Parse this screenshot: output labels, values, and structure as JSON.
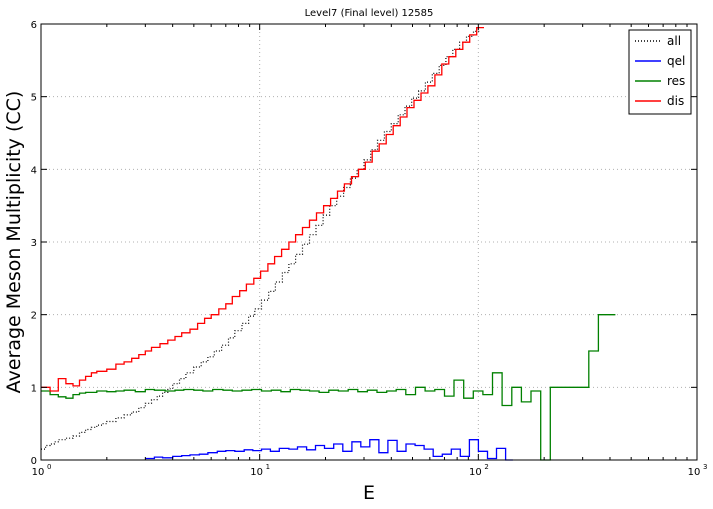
{
  "chart_data": {
    "type": "line",
    "drawstyle": "steps",
    "title": "Level7 (Final level) 12585",
    "xlabel": "E",
    "ylabel": "Average Meson Multiplicity (CC)",
    "xscale": "log",
    "xlim": [
      1,
      1000
    ],
    "ylim": [
      0,
      6
    ],
    "x_ticks": [
      1,
      10,
      100,
      1000
    ],
    "x_tick_labels": [
      "10",
      "10",
      "10",
      "10"
    ],
    "x_tick_exponents": [
      "0",
      "1",
      "2",
      "3"
    ],
    "y_ticks": [
      0,
      1,
      2,
      3,
      4,
      5,
      6
    ],
    "y_tick_labels": [
      "0",
      "1",
      "2",
      "3",
      "4",
      "5",
      "6"
    ],
    "grid": true,
    "legend": "top-right",
    "series": [
      {
        "name": "all",
        "color": "#000000",
        "style": "dotted",
        "x": [
          1.0,
          1.05,
          1.1,
          1.15,
          1.2,
          1.3,
          1.4,
          1.5,
          1.6,
          1.7,
          1.8,
          1.9,
          2.0,
          2.2,
          2.4,
          2.6,
          2.8,
          3.0,
          3.2,
          3.4,
          3.6,
          3.8,
          4.0,
          4.3,
          4.6,
          5.0,
          5.4,
          5.8,
          6.2,
          6.7,
          7.2,
          7.7,
          8.3,
          8.9,
          9.5,
          10.2,
          11.0,
          11.8,
          12.7,
          13.6,
          14.6,
          15.7,
          16.9,
          18.1,
          19.5,
          20.9,
          22.5,
          24.2,
          26.0,
          27.9,
          30.0,
          32.2,
          34.6,
          37.2,
          40.0,
          43.0,
          46.2,
          49.6,
          53.3,
          57.3,
          61.6,
          66.2,
          71.1,
          76.4,
          82.1,
          88.3,
          95.0
        ],
        "values": [
          0.15,
          0.2,
          0.22,
          0.25,
          0.28,
          0.3,
          0.33,
          0.38,
          0.42,
          0.45,
          0.48,
          0.5,
          0.53,
          0.58,
          0.62,
          0.66,
          0.72,
          0.78,
          0.83,
          0.88,
          0.93,
          0.98,
          1.05,
          1.12,
          1.2,
          1.28,
          1.35,
          1.42,
          1.5,
          1.58,
          1.68,
          1.78,
          1.88,
          1.98,
          2.08,
          2.2,
          2.32,
          2.45,
          2.58,
          2.7,
          2.83,
          2.97,
          3.1,
          3.23,
          3.37,
          3.5,
          3.63,
          3.75,
          3.88,
          4.0,
          4.13,
          4.27,
          4.4,
          4.52,
          4.63,
          4.75,
          4.87,
          4.98,
          5.08,
          5.2,
          5.32,
          5.43,
          5.55,
          5.65,
          5.75,
          5.83,
          5.9
        ]
      },
      {
        "name": "qel",
        "color": "#0000ff",
        "style": "solid",
        "x": [
          3.0,
          3.3,
          3.6,
          4.0,
          4.4,
          4.8,
          5.3,
          5.8,
          6.4,
          7.0,
          7.7,
          8.5,
          9.3,
          10.2,
          11.2,
          12.3,
          13.6,
          14.9,
          16.4,
          18.0,
          19.8,
          21.8,
          24.0,
          26.4,
          29.0,
          31.9,
          35.1,
          38.6,
          42.5,
          46.7,
          51.4,
          56.5,
          62.2,
          68.4,
          75.2,
          82.7,
          91.0,
          100.1,
          110.1,
          121.1,
          133.2
        ],
        "values": [
          0.02,
          0.04,
          0.03,
          0.05,
          0.06,
          0.07,
          0.08,
          0.1,
          0.12,
          0.13,
          0.12,
          0.14,
          0.13,
          0.15,
          0.12,
          0.16,
          0.15,
          0.18,
          0.14,
          0.2,
          0.16,
          0.22,
          0.12,
          0.25,
          0.18,
          0.28,
          0.1,
          0.27,
          0.12,
          0.22,
          0.2,
          0.15,
          0.05,
          0.08,
          0.15,
          0.05,
          0.28,
          0.12,
          0.02,
          0.16,
          0.0
        ]
      },
      {
        "name": "res",
        "color": "#008000",
        "style": "solid",
        "x": [
          1.0,
          1.1,
          1.2,
          1.3,
          1.4,
          1.5,
          1.6,
          1.8,
          2.0,
          2.2,
          2.4,
          2.7,
          3.0,
          3.3,
          3.7,
          4.1,
          4.5,
          5.0,
          5.5,
          6.1,
          6.8,
          7.5,
          8.3,
          9.2,
          10.2,
          11.3,
          12.5,
          13.8,
          15.3,
          16.9,
          18.7,
          20.7,
          22.9,
          25.4,
          28.1,
          31.1,
          34.4,
          38.1,
          42.1,
          46.6,
          51.6,
          57.1,
          63.2,
          70.0,
          77.4,
          85.7,
          94.8,
          104.9,
          116.1,
          128.5,
          142.2,
          157.4,
          174.2,
          192.8,
          213.3,
          236.1,
          261.3,
          289.2,
          320.0,
          354.2,
          392.0
        ],
        "values": [
          0.95,
          0.9,
          0.87,
          0.85,
          0.9,
          0.92,
          0.93,
          0.95,
          0.94,
          0.95,
          0.96,
          0.94,
          0.97,
          0.96,
          0.95,
          0.96,
          0.97,
          0.96,
          0.95,
          0.97,
          0.96,
          0.95,
          0.96,
          0.97,
          0.95,
          0.96,
          0.94,
          0.97,
          0.96,
          0.95,
          0.93,
          0.96,
          0.95,
          0.97,
          0.94,
          0.96,
          0.93,
          0.95,
          0.97,
          0.9,
          1.0,
          0.95,
          0.97,
          0.88,
          1.1,
          0.85,
          0.95,
          0.9,
          1.2,
          0.75,
          1.0,
          0.8,
          0.95,
          0.0,
          1.0,
          1.0,
          1.0,
          1.0,
          1.5,
          2.0,
          2.0
        ]
      },
      {
        "name": "dis",
        "color": "#ff0000",
        "style": "solid",
        "x": [
          1.0,
          1.1,
          1.2,
          1.3,
          1.4,
          1.5,
          1.6,
          1.7,
          1.8,
          2.0,
          2.2,
          2.4,
          2.6,
          2.8,
          3.0,
          3.2,
          3.5,
          3.8,
          4.1,
          4.4,
          4.8,
          5.2,
          5.6,
          6.0,
          6.5,
          7.0,
          7.5,
          8.1,
          8.7,
          9.4,
          10.1,
          10.9,
          11.7,
          12.6,
          13.6,
          14.6,
          15.7,
          16.9,
          18.2,
          19.6,
          21.1,
          22.7,
          24.4,
          26.3,
          28.3,
          30.4,
          32.7,
          35.2,
          37.9,
          40.8,
          43.9,
          47.2,
          50.8,
          54.7,
          58.8,
          63.3,
          68.1,
          73.3,
          78.9,
          84.9,
          91.3,
          98.3
        ],
        "values": [
          1.0,
          0.95,
          1.12,
          1.05,
          1.02,
          1.1,
          1.15,
          1.2,
          1.22,
          1.25,
          1.32,
          1.35,
          1.4,
          1.45,
          1.5,
          1.55,
          1.6,
          1.65,
          1.7,
          1.75,
          1.8,
          1.88,
          1.95,
          2.0,
          2.08,
          2.15,
          2.25,
          2.33,
          2.42,
          2.5,
          2.6,
          2.7,
          2.8,
          2.9,
          3.0,
          3.1,
          3.2,
          3.3,
          3.4,
          3.5,
          3.6,
          3.7,
          3.8,
          3.9,
          4.0,
          4.1,
          4.25,
          4.35,
          4.48,
          4.6,
          4.72,
          4.85,
          4.95,
          5.05,
          5.15,
          5.3,
          5.45,
          5.55,
          5.65,
          5.75,
          5.85,
          5.95
        ]
      }
    ]
  }
}
